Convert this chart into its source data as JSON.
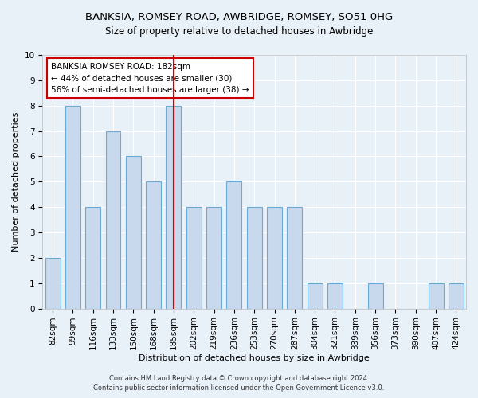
{
  "title": "BANKSIA, ROMSEY ROAD, AWBRIDGE, ROMSEY, SO51 0HG",
  "subtitle": "Size of property relative to detached houses in Awbridge",
  "xlabel": "Distribution of detached houses by size in Awbridge",
  "ylabel": "Number of detached properties",
  "categories": [
    "82sqm",
    "99sqm",
    "116sqm",
    "133sqm",
    "150sqm",
    "168sqm",
    "185sqm",
    "202sqm",
    "219sqm",
    "236sqm",
    "253sqm",
    "270sqm",
    "287sqm",
    "304sqm",
    "321sqm",
    "339sqm",
    "356sqm",
    "373sqm",
    "390sqm",
    "407sqm",
    "424sqm"
  ],
  "values": [
    2,
    8,
    4,
    7,
    6,
    5,
    8,
    4,
    4,
    5,
    4,
    4,
    4,
    1,
    1,
    0,
    1,
    0,
    0,
    1,
    1
  ],
  "bar_color": "#C8D9ED",
  "bar_edgecolor": "#6AAAD4",
  "bar_width": 0.75,
  "highlight_index": 6,
  "highlight_line_color": "#CC0000",
  "ylim": [
    0,
    10
  ],
  "yticks": [
    0,
    1,
    2,
    3,
    4,
    5,
    6,
    7,
    8,
    9,
    10
  ],
  "annotation_text": "BANKSIA ROMSEY ROAD: 182sqm\n← 44% of detached houses are smaller (30)\n56% of semi-detached houses are larger (38) →",
  "annotation_box_color": "#ffffff",
  "annotation_border_color": "#CC0000",
  "footer_text": "Contains HM Land Registry data © Crown copyright and database right 2024.\nContains public sector information licensed under the Open Government Licence v3.0.",
  "background_color": "#E8F0F8",
  "grid_color": "#ffffff",
  "title_fontsize": 9.5,
  "subtitle_fontsize": 8.5,
  "axis_label_fontsize": 8,
  "tick_fontsize": 7.5,
  "annotation_fontsize": 7.5,
  "footer_fontsize": 6
}
